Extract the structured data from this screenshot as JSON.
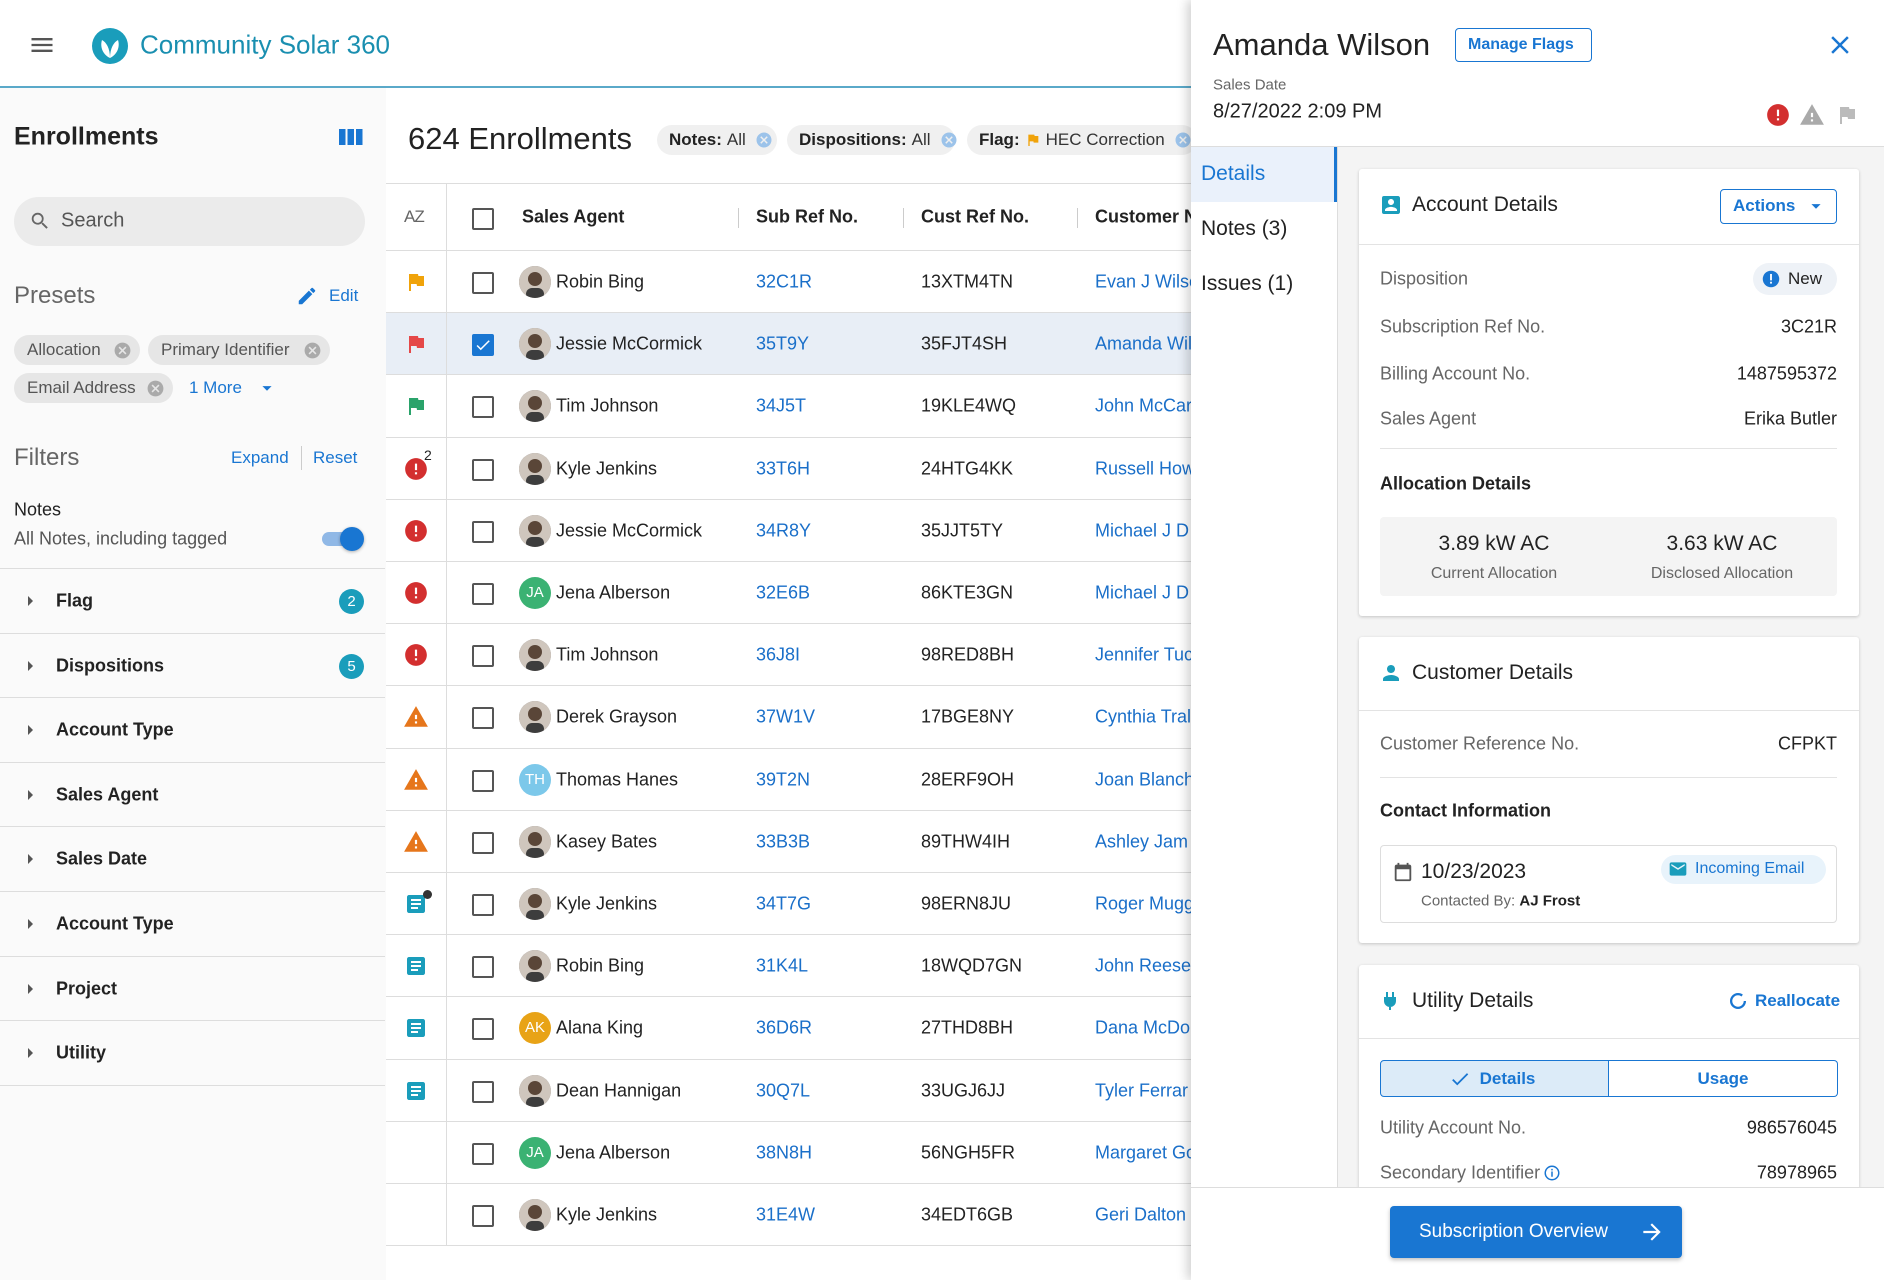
{
  "header": {
    "app_name": "Community Solar 360"
  },
  "sidebar": {
    "title": "Enrollments",
    "search_placeholder": "Search",
    "presets_title": "Presets",
    "presets_edit": "Edit",
    "presets": [
      "Allocation",
      "Primary Identifier",
      "Email Address"
    ],
    "presets_more": "1 More",
    "filters_title": "Filters",
    "expand": "Expand",
    "reset": "Reset",
    "notes_label": "Notes",
    "notes_option": "All Notes, including tagged",
    "filters": [
      {
        "label": "Flag",
        "count": 2
      },
      {
        "label": "Dispositions",
        "count": 5
      },
      {
        "label": "Account Type"
      },
      {
        "label": "Sales Agent"
      },
      {
        "label": "Sales Date"
      },
      {
        "label": "Account Type"
      },
      {
        "label": "Project"
      },
      {
        "label": "Utility"
      }
    ]
  },
  "list": {
    "title": "624 Enrollments",
    "chips": [
      {
        "label": "Notes:",
        "value": "All"
      },
      {
        "label": "Dispositions:",
        "value": "All"
      },
      {
        "label": "Flag:",
        "value": "HEC Correction",
        "flag": true
      }
    ],
    "sort_label": "AZ",
    "columns": [
      "Sales Agent",
      "Sub Ref No.",
      "Cust Ref No.",
      "Customer N"
    ],
    "rows": [
      {
        "status": "flag-orange",
        "agent": "Robin Bing",
        "sub": "32C1R",
        "cust": "13XTM4TN",
        "customer": "Evan J Wilso"
      },
      {
        "status": "flag-red",
        "agent": "Jessie McCormick",
        "sub": "35T9Y",
        "cust": "35FJT4SH",
        "customer": "Amanda Wil",
        "selected": true
      },
      {
        "status": "flag-green",
        "agent": "Tim Johnson",
        "sub": "34J5T",
        "cust": "19KLE4WQ",
        "customer": "John McCar"
      },
      {
        "status": "error",
        "badge": 2,
        "agent": "Kyle Jenkins",
        "sub": "33T6H",
        "cust": "24HTG4KK",
        "customer": "Russell How"
      },
      {
        "status": "error",
        "agent": "Jessie McCormick",
        "sub": "34R8Y",
        "cust": "35JJT5TY",
        "customer": "Michael J D"
      },
      {
        "status": "error",
        "agent": "Jena Alberson",
        "initials": "JA",
        "avatar_color": "#3bb273",
        "sub": "32E6B",
        "cust": "86KTE3GN",
        "customer": "Michael J D"
      },
      {
        "status": "error",
        "agent": "Tim Johnson",
        "sub": "36J8I",
        "cust": "98RED8BH",
        "customer": "Jennifer Tuc"
      },
      {
        "status": "warning",
        "agent": "Derek Grayson",
        "sub": "37W1V",
        "cust": "17BGE8NY",
        "customer": "Cynthia Tral"
      },
      {
        "status": "warning",
        "agent": "Thomas Hanes",
        "initials": "TH",
        "avatar_color": "#7cc8ea",
        "sub": "39T2N",
        "cust": "28ERF9OH",
        "customer": "Joan Blanch"
      },
      {
        "status": "warning",
        "agent": "Kasey Bates",
        "sub": "33B3B",
        "cust": "89THW4IH",
        "customer": "Ashley Jam"
      },
      {
        "status": "note-dot",
        "agent": "Kyle Jenkins",
        "sub": "34T7G",
        "cust": "98ERN8JU",
        "customer": "Roger Mugg"
      },
      {
        "status": "note",
        "agent": "Robin Bing",
        "sub": "31K4L",
        "cust": "18WQD7GN",
        "customer": "John Reese"
      },
      {
        "status": "note",
        "agent": "Alana King",
        "initials": "AK",
        "avatar_color": "#e8a317",
        "sub": "36D6R",
        "cust": "27THD8BH",
        "customer": "Dana McDo"
      },
      {
        "status": "note",
        "agent": "Dean Hannigan",
        "sub": "30Q7L",
        "cust": "33UGJ6JJ",
        "customer": "Tyler Ferrar"
      },
      {
        "status": "none",
        "agent": "Jena Alberson",
        "initials": "JA",
        "avatar_color": "#3bb273",
        "sub": "38N8H",
        "cust": "56NGH5FR",
        "customer": "Margaret Go"
      },
      {
        "status": "none",
        "agent": "Kyle Jenkins",
        "sub": "31E4W",
        "cust": "34EDT6GB",
        "customer": "Geri Dalton"
      }
    ]
  },
  "panel": {
    "name": "Amanda Wilson",
    "manage_flags": "Manage Flags",
    "sales_date_label": "Sales Date",
    "sales_date": "8/27/2022 2:09 PM",
    "tabs": [
      "Details",
      "Notes (3)",
      "Issues (1)"
    ],
    "account": {
      "title": "Account Details",
      "actions": "Actions",
      "rows": [
        {
          "label": "Disposition",
          "value": "New",
          "chip": true
        },
        {
          "label": "Subscription Ref No.",
          "value": "3C21R"
        },
        {
          "label": "Billing Account No.",
          "value": "1487595372"
        },
        {
          "label": "Sales Agent",
          "value": "Erika Butler"
        }
      ],
      "allocation_title": "Allocation Details",
      "allocations": [
        {
          "value": "3.89 kW AC",
          "label": "Current Allocation"
        },
        {
          "value": "3.63 kW AC",
          "label": "Disclosed Allocation"
        }
      ]
    },
    "customer": {
      "title": "Customer Details",
      "rows": [
        {
          "label": "Customer Reference No.",
          "value": "CFPKT"
        }
      ],
      "contact_title": "Contact Information",
      "contact": {
        "date": "10/23/2023",
        "type": "Incoming Email",
        "by_label": "Contacted By:",
        "by": "AJ Frost"
      }
    },
    "utility": {
      "title": "Utility Details",
      "reallocate": "Reallocate",
      "toggles": [
        "Details",
        "Usage"
      ],
      "rows": [
        {
          "label": "Utility Account No.",
          "value": "986576045"
        },
        {
          "label": "Secondary Identifier",
          "value": "78978965",
          "info": true
        }
      ]
    },
    "footer_button": "Subscription Overview"
  }
}
